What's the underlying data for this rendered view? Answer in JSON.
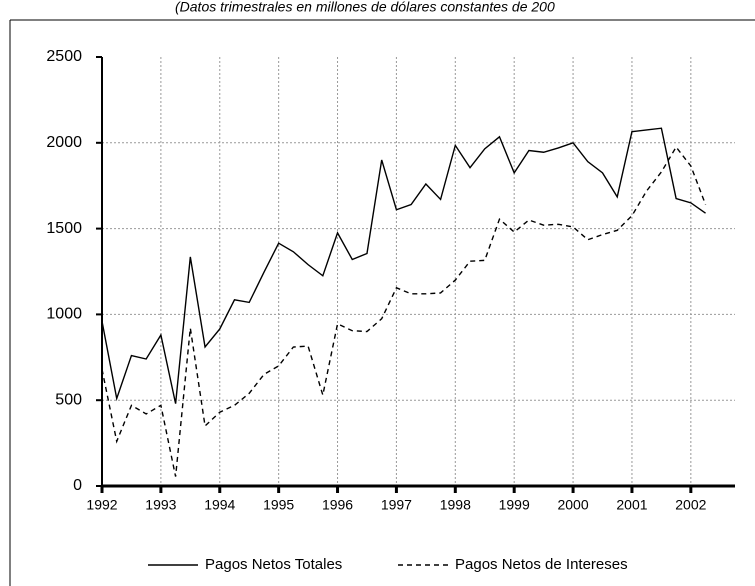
{
  "chart_data": {
    "type": "line",
    "subtitle": "(Datos trimestrales en millones de dólares constantes de 200",
    "x": [
      1992,
      1992.25,
      1992.5,
      1992.75,
      1993,
      1993.25,
      1993.5,
      1993.75,
      1994,
      1994.25,
      1994.5,
      1994.75,
      1995,
      1995.25,
      1995.5,
      1995.75,
      1996,
      1996.25,
      1996.5,
      1996.75,
      1997,
      1997.25,
      1997.5,
      1997.75,
      1998,
      1998.25,
      1998.5,
      1998.75,
      1999,
      1999.25,
      1999.5,
      1999.75,
      2000,
      2000.25,
      2000.5,
      2000.75,
      2001,
      2001.25,
      2001.5,
      2001.75,
      2002,
      2002.25
    ],
    "series": [
      {
        "name": "Pagos Netos Totales",
        "color": "#000000",
        "style": "solid",
        "values": [
          960,
          510,
          760,
          740,
          880,
          480,
          1335,
          810,
          915,
          1085,
          1070,
          1245,
          1415,
          1365,
          1290,
          1225,
          1475,
          1320,
          1355,
          1900,
          1610,
          1640,
          1760,
          1670,
          1985,
          1855,
          1965,
          2035,
          1825,
          1955,
          1945,
          1970,
          2000,
          1890,
          1825,
          1685,
          2065,
          2075,
          2085,
          1675,
          1650,
          1590
        ]
      },
      {
        "name": "Pagos Netos de Intereses",
        "color": "#000000",
        "style": "dashed",
        "values": [
          680,
          260,
          470,
          420,
          470,
          55,
          920,
          350,
          430,
          470,
          540,
          650,
          700,
          810,
          815,
          530,
          945,
          905,
          900,
          975,
          1155,
          1120,
          1120,
          1125,
          1200,
          1310,
          1315,
          1555,
          1480,
          1550,
          1520,
          1525,
          1510,
          1435,
          1465,
          1490,
          1575,
          1720,
          1830,
          1975,
          1865,
          1640
        ]
      }
    ],
    "xlim": [
      1992,
      2002.75
    ],
    "xticks": [
      1992,
      1993,
      1994,
      1995,
      1996,
      1997,
      1998,
      1999,
      2000,
      2001,
      2002
    ],
    "ylim": [
      0,
      2500
    ],
    "yticks": [
      0,
      500,
      1000,
      1500,
      2000,
      2500
    ],
    "grid": true
  }
}
